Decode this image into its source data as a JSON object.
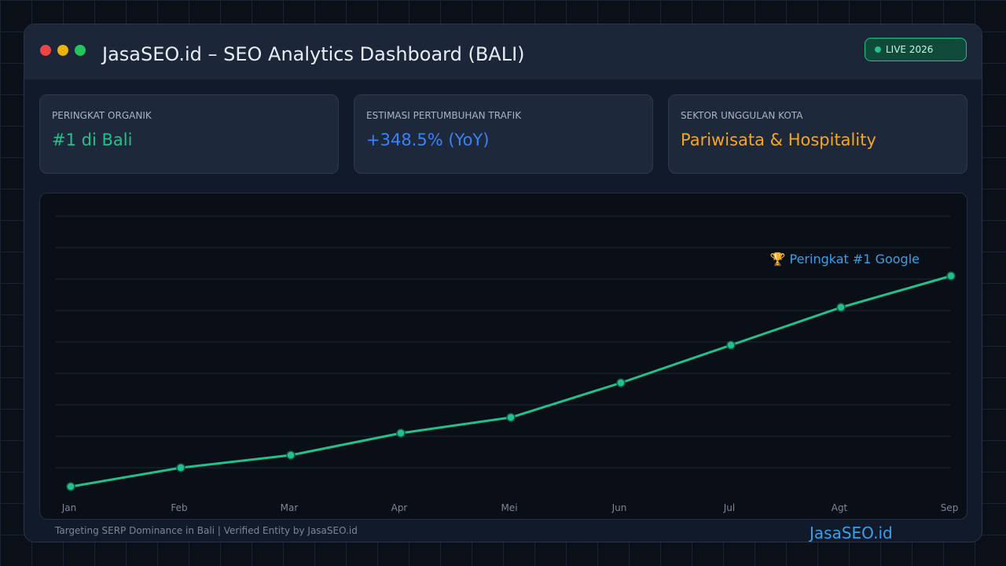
{
  "window": {
    "title": "JasaSEO.id – SEO Analytics Dashboard (BALI)",
    "badge": "LIVE 2026"
  },
  "cards": [
    {
      "label": "PERINGKAT ORGANIK",
      "value": "#1 di Bali"
    },
    {
      "label": "ESTIMASI PERTUMBUHAN TRAFIK",
      "value": "+348.5% (YoY)"
    },
    {
      "label": "SEKTOR UNGGULAN KOTA",
      "value": "Pariwisata & Hospitality"
    }
  ],
  "chart_data": {
    "type": "line",
    "categories": [
      "Jan",
      "Feb",
      "Mar",
      "Apr",
      "Mei",
      "Jun",
      "Jul",
      "Agt",
      "Sep"
    ],
    "values": [
      4,
      10,
      14,
      21,
      26,
      37,
      49,
      61,
      71
    ],
    "color": "#22c08a",
    "ylim": [
      0,
      90
    ],
    "yticks": [
      10,
      20,
      30,
      40,
      50,
      60,
      70,
      80,
      90
    ],
    "grid": true,
    "annotation": "🏆 Peringkat #1 Google"
  },
  "footer": {
    "note": "Targeting SERP Dominance in Bali | Verified Entity by JasaSEO.id",
    "brand": "JasaSEO.id"
  }
}
